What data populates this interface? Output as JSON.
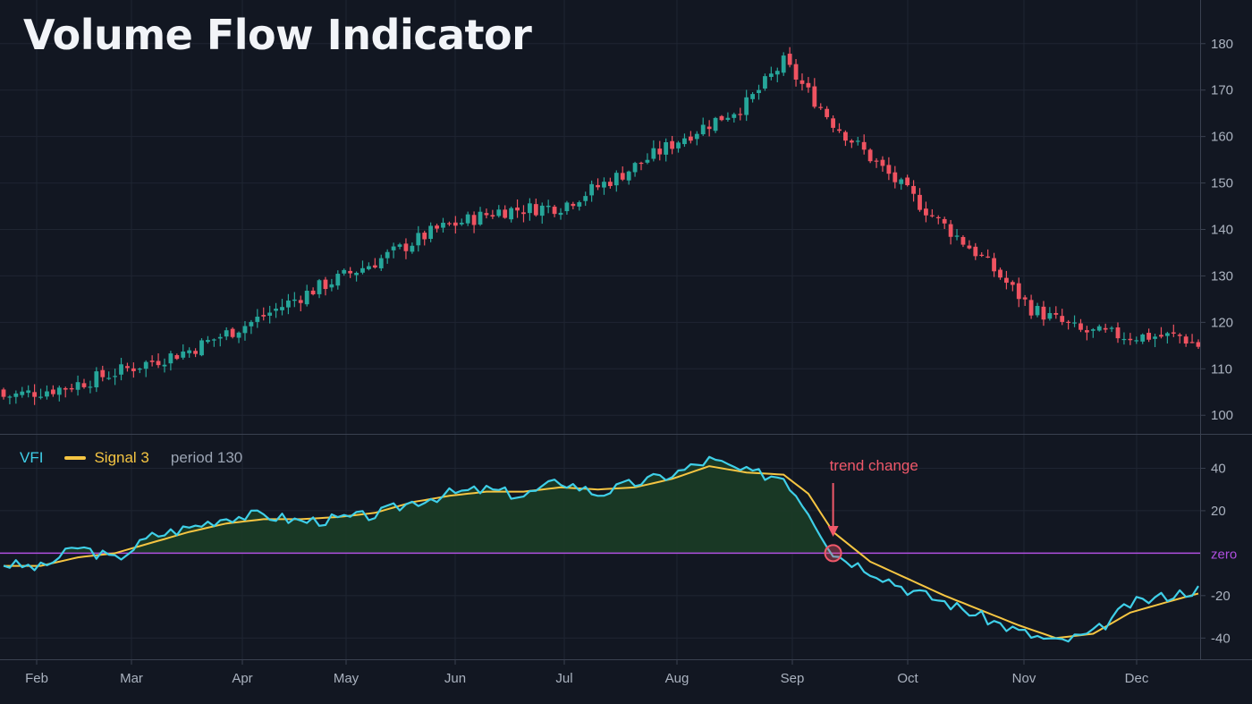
{
  "title": "Volume Flow Indicator",
  "colors": {
    "background": "#121722",
    "grid": "#1f2532",
    "up": "#26a69a",
    "down": "#ef5361",
    "vfi": "#3fcfe8",
    "signal": "#f5c542",
    "zero": "#b04fe0",
    "fill": "#1a3a26",
    "annotation": "#f0586a"
  },
  "legend": {
    "vfi": "VFI",
    "signal": "Signal 3",
    "period": "period 130"
  },
  "chart_data": [
    {
      "type": "candlestick",
      "ylim": [
        96,
        184
      ],
      "y_ticks": [
        100,
        110,
        120,
        130,
        140,
        150,
        160,
        170,
        180
      ],
      "x_ticks": [
        "Feb",
        "Mar",
        "Apr",
        "May",
        "Jun",
        "Jul",
        "Aug",
        "Sep",
        "Oct",
        "Nov",
        "Dec"
      ],
      "grid": true,
      "close_anchors": [
        [
          0,
          104
        ],
        [
          10,
          106
        ],
        [
          20,
          110
        ],
        [
          30,
          114
        ],
        [
          40,
          120
        ],
        [
          50,
          127
        ],
        [
          60,
          133
        ],
        [
          70,
          140
        ],
        [
          80,
          144
        ],
        [
          90,
          145
        ],
        [
          100,
          152
        ],
        [
          110,
          160
        ],
        [
          120,
          167
        ],
        [
          126,
          176
        ],
        [
          134,
          163
        ],
        [
          142,
          153
        ],
        [
          150,
          143
        ],
        [
          158,
          134
        ],
        [
          166,
          123
        ],
        [
          174,
          118
        ],
        [
          182,
          117
        ],
        [
          190,
          117
        ],
        [
          193,
          115
        ]
      ],
      "candle_count": 194
    },
    {
      "type": "line",
      "ylim": [
        -50,
        52
      ],
      "y_ticks": [
        40,
        20,
        -20,
        -40
      ],
      "zero_label": "zero",
      "series": [
        {
          "name": "VFI",
          "anchors": [
            [
              0,
              -5
            ],
            [
              6,
              -7
            ],
            [
              12,
              3
            ],
            [
              18,
              -3
            ],
            [
              24,
              8
            ],
            [
              30,
              12
            ],
            [
              36,
              17
            ],
            [
              42,
              18
            ],
            [
              48,
              15
            ],
            [
              54,
              16
            ],
            [
              60,
              18
            ],
            [
              66,
              24
            ],
            [
              72,
              28
            ],
            [
              78,
              30
            ],
            [
              84,
              27
            ],
            [
              90,
              34
            ],
            [
              96,
              28
            ],
            [
              102,
              33
            ],
            [
              108,
              37
            ],
            [
              114,
              44
            ],
            [
              120,
              38
            ],
            [
              126,
              36
            ],
            [
              130,
              20
            ],
            [
              134,
              0
            ],
            [
              140,
              -8
            ],
            [
              146,
              -17
            ],
            [
              152,
              -23
            ],
            [
              158,
              -30
            ],
            [
              164,
              -37
            ],
            [
              170,
              -42
            ],
            [
              176,
              -38
            ],
            [
              182,
              -24
            ],
            [
              188,
              -20
            ],
            [
              193,
              -17
            ]
          ]
        },
        {
          "name": "Signal 3",
          "anchors": [
            [
              0,
              -6
            ],
            [
              6,
              -6
            ],
            [
              12,
              -2
            ],
            [
              18,
              0
            ],
            [
              24,
              5
            ],
            [
              30,
              10
            ],
            [
              36,
              14
            ],
            [
              42,
              16
            ],
            [
              48,
              16
            ],
            [
              54,
              17
            ],
            [
              60,
              19
            ],
            [
              66,
              24
            ],
            [
              72,
              27
            ],
            [
              78,
              29
            ],
            [
              84,
              29
            ],
            [
              90,
              31
            ],
            [
              96,
              30
            ],
            [
              102,
              31
            ],
            [
              108,
              35
            ],
            [
              114,
              41
            ],
            [
              120,
              38
            ],
            [
              126,
              37
            ],
            [
              130,
              28
            ],
            [
              134,
              10
            ],
            [
              140,
              -4
            ],
            [
              146,
              -12
            ],
            [
              152,
              -20
            ],
            [
              158,
              -27
            ],
            [
              164,
              -34
            ],
            [
              170,
              -40
            ],
            [
              176,
              -38
            ],
            [
              182,
              -28
            ],
            [
              188,
              -23
            ],
            [
              193,
              -19
            ]
          ]
        }
      ],
      "annotation": {
        "text": "trend change",
        "x": 134,
        "y": 0
      }
    }
  ]
}
